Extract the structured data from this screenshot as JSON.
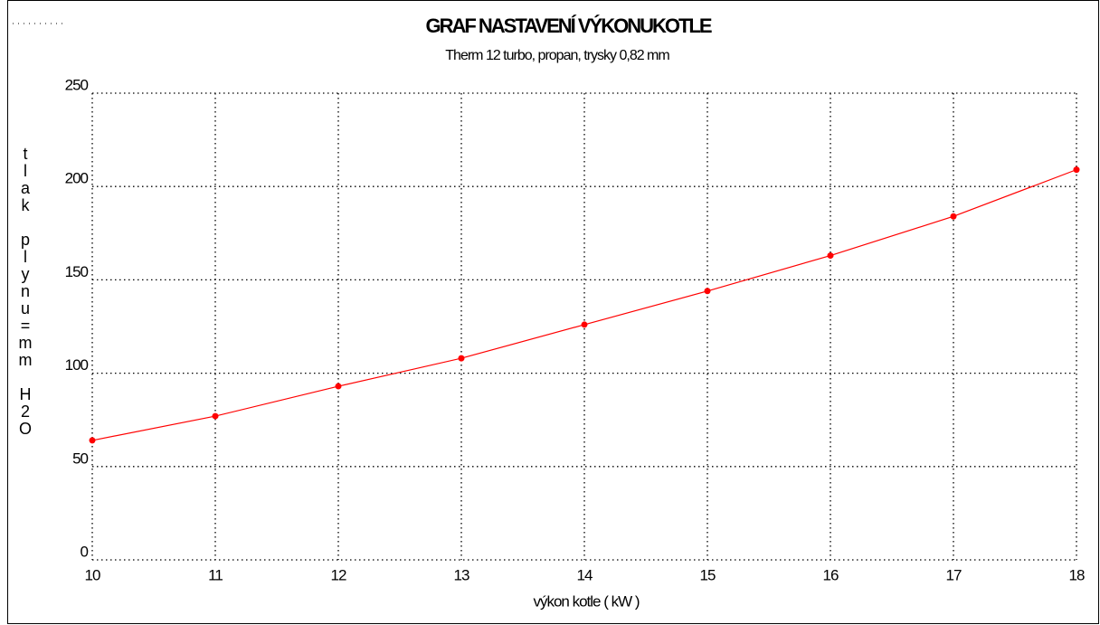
{
  "chart_data": {
    "type": "line",
    "title": "GRAF NASTAVENÍ VÝKONUKOTLE",
    "subtitle": "Therm 12 turbo, propan, trysky 0,82 mm",
    "x_label": "výkon kotle ( kW )",
    "y_label": "tlak plynu=mm H2O",
    "x": [
      10,
      11,
      12,
      13,
      14,
      15,
      16,
      17,
      18
    ],
    "series": [
      {
        "name": "tlak",
        "color": "#ff0000",
        "values": [
          64,
          77,
          93,
          108,
          126,
          144,
          163,
          184,
          209
        ]
      }
    ],
    "xlim": [
      10,
      18
    ],
    "xticks": [
      10,
      11,
      12,
      13,
      14,
      15,
      16,
      17,
      18
    ],
    "ylim": [
      0,
      250
    ],
    "yticks": [
      0,
      50,
      100,
      150,
      200,
      250
    ],
    "grid": true,
    "legend": false
  }
}
